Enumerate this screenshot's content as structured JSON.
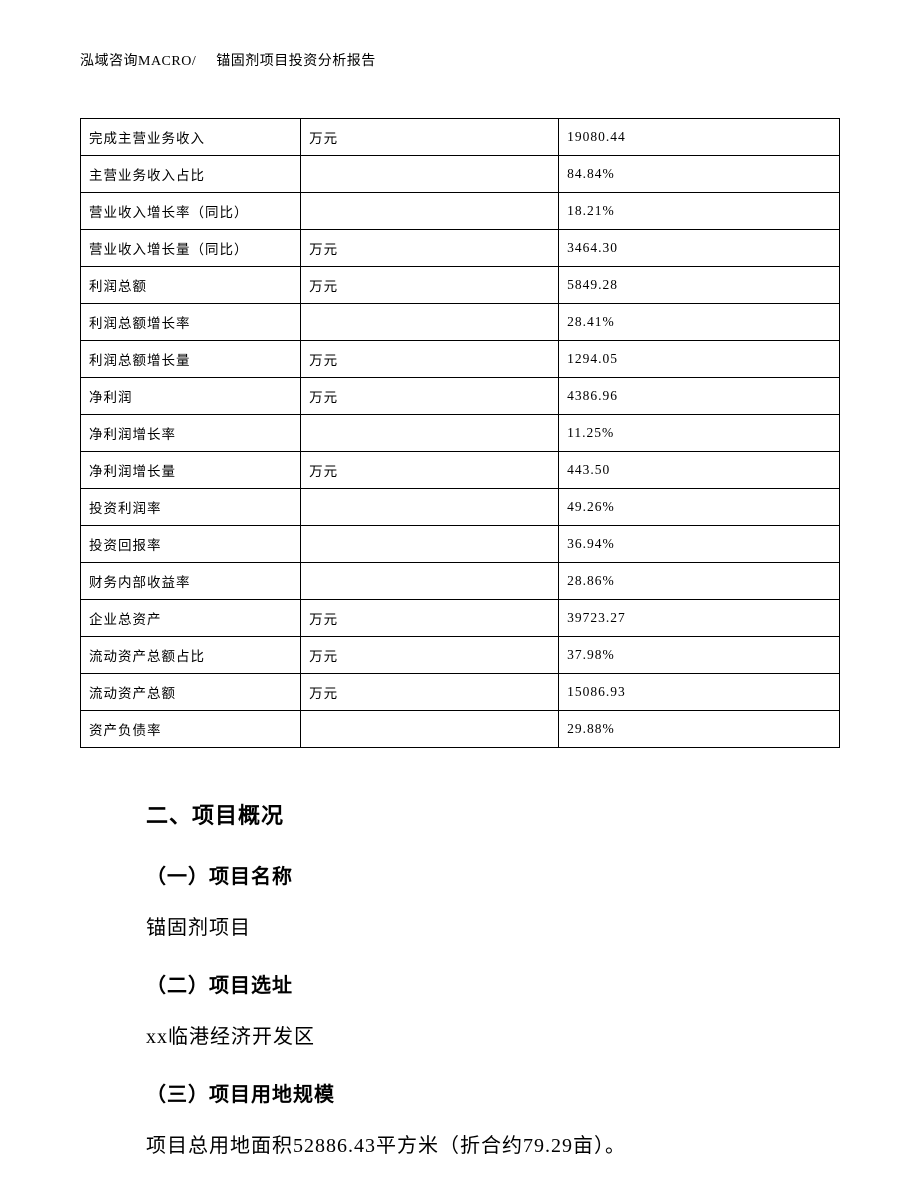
{
  "header": {
    "left": "泓域咨询MACRO/",
    "right": "锚固剂项目投资分析报告"
  },
  "table": {
    "border_color": "#000000",
    "background_color": "#ffffff",
    "font_size_pt": 10,
    "col_widths_pct": [
      29,
      34,
      37
    ],
    "rows": [
      {
        "label": "完成主营业务收入",
        "unit": "万元",
        "value": "19080.44"
      },
      {
        "label": "主营业务收入占比",
        "unit": "",
        "value": "84.84%"
      },
      {
        "label": "营业收入增长率（同比）",
        "unit": "",
        "value": "18.21%"
      },
      {
        "label": "营业收入增长量（同比）",
        "unit": "万元",
        "value": "3464.30"
      },
      {
        "label": "利润总额",
        "unit": "万元",
        "value": "5849.28"
      },
      {
        "label": "利润总额增长率",
        "unit": "",
        "value": "28.41%"
      },
      {
        "label": "利润总额增长量",
        "unit": "万元",
        "value": "1294.05"
      },
      {
        "label": "净利润",
        "unit": "万元",
        "value": "4386.96"
      },
      {
        "label": "净利润增长率",
        "unit": "",
        "value": "11.25%"
      },
      {
        "label": "净利润增长量",
        "unit": "万元",
        "value": "443.50"
      },
      {
        "label": "投资利润率",
        "unit": "",
        "value": "49.26%"
      },
      {
        "label": "投资回报率",
        "unit": "",
        "value": "36.94%"
      },
      {
        "label": "财务内部收益率",
        "unit": "",
        "value": "28.86%"
      },
      {
        "label": "企业总资产",
        "unit": "万元",
        "value": "39723.27"
      },
      {
        "label": "流动资产总额占比",
        "unit": "万元",
        "value": "37.98%"
      },
      {
        "label": "流动资产总额",
        "unit": "万元",
        "value": "15086.93"
      },
      {
        "label": "资产负债率",
        "unit": "",
        "value": "29.88%"
      }
    ]
  },
  "sections": {
    "h2": "二、项目概况",
    "s1_title": "（一）项目名称",
    "s1_body": "锚固剂项目",
    "s2_title": "（二）项目选址",
    "s2_body": "xx临港经济开发区",
    "s3_title": "（三）项目用地规模",
    "s3_body": "项目总用地面积52886.43平方米（折合约79.29亩）。"
  },
  "typography": {
    "heading_font": "SimHei",
    "body_font": "SimSun",
    "h2_size_pt": 16,
    "h3_size_pt": 15,
    "body_size_pt": 15,
    "text_color": "#000000"
  }
}
